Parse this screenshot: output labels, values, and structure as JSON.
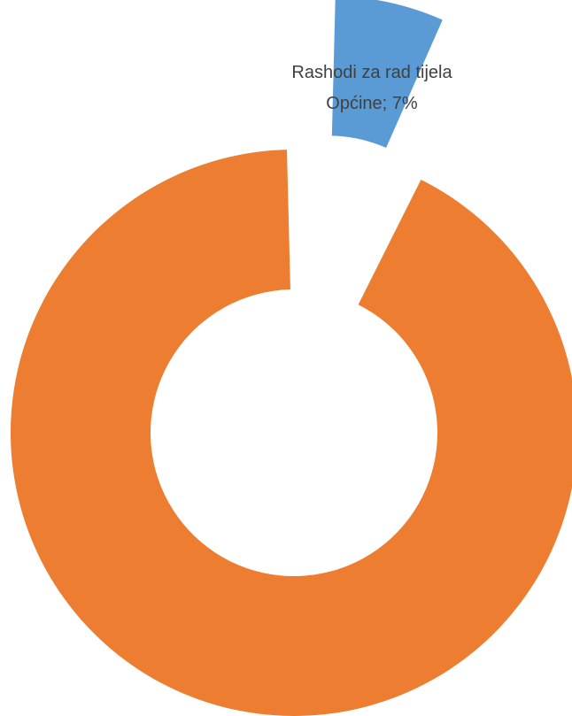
{
  "chart_data": {
    "type": "pie",
    "subtype": "doughnut",
    "slices": [
      {
        "label_lines": [
          "Rashodi za rad tijela",
          "Općine; 7%"
        ],
        "value": 7,
        "color": "#5B9BD5",
        "exploded": true
      },
      {
        "label_lines": [],
        "value": 93,
        "color": "#ED7D31",
        "exploded": false
      }
    ],
    "legend": "none"
  }
}
